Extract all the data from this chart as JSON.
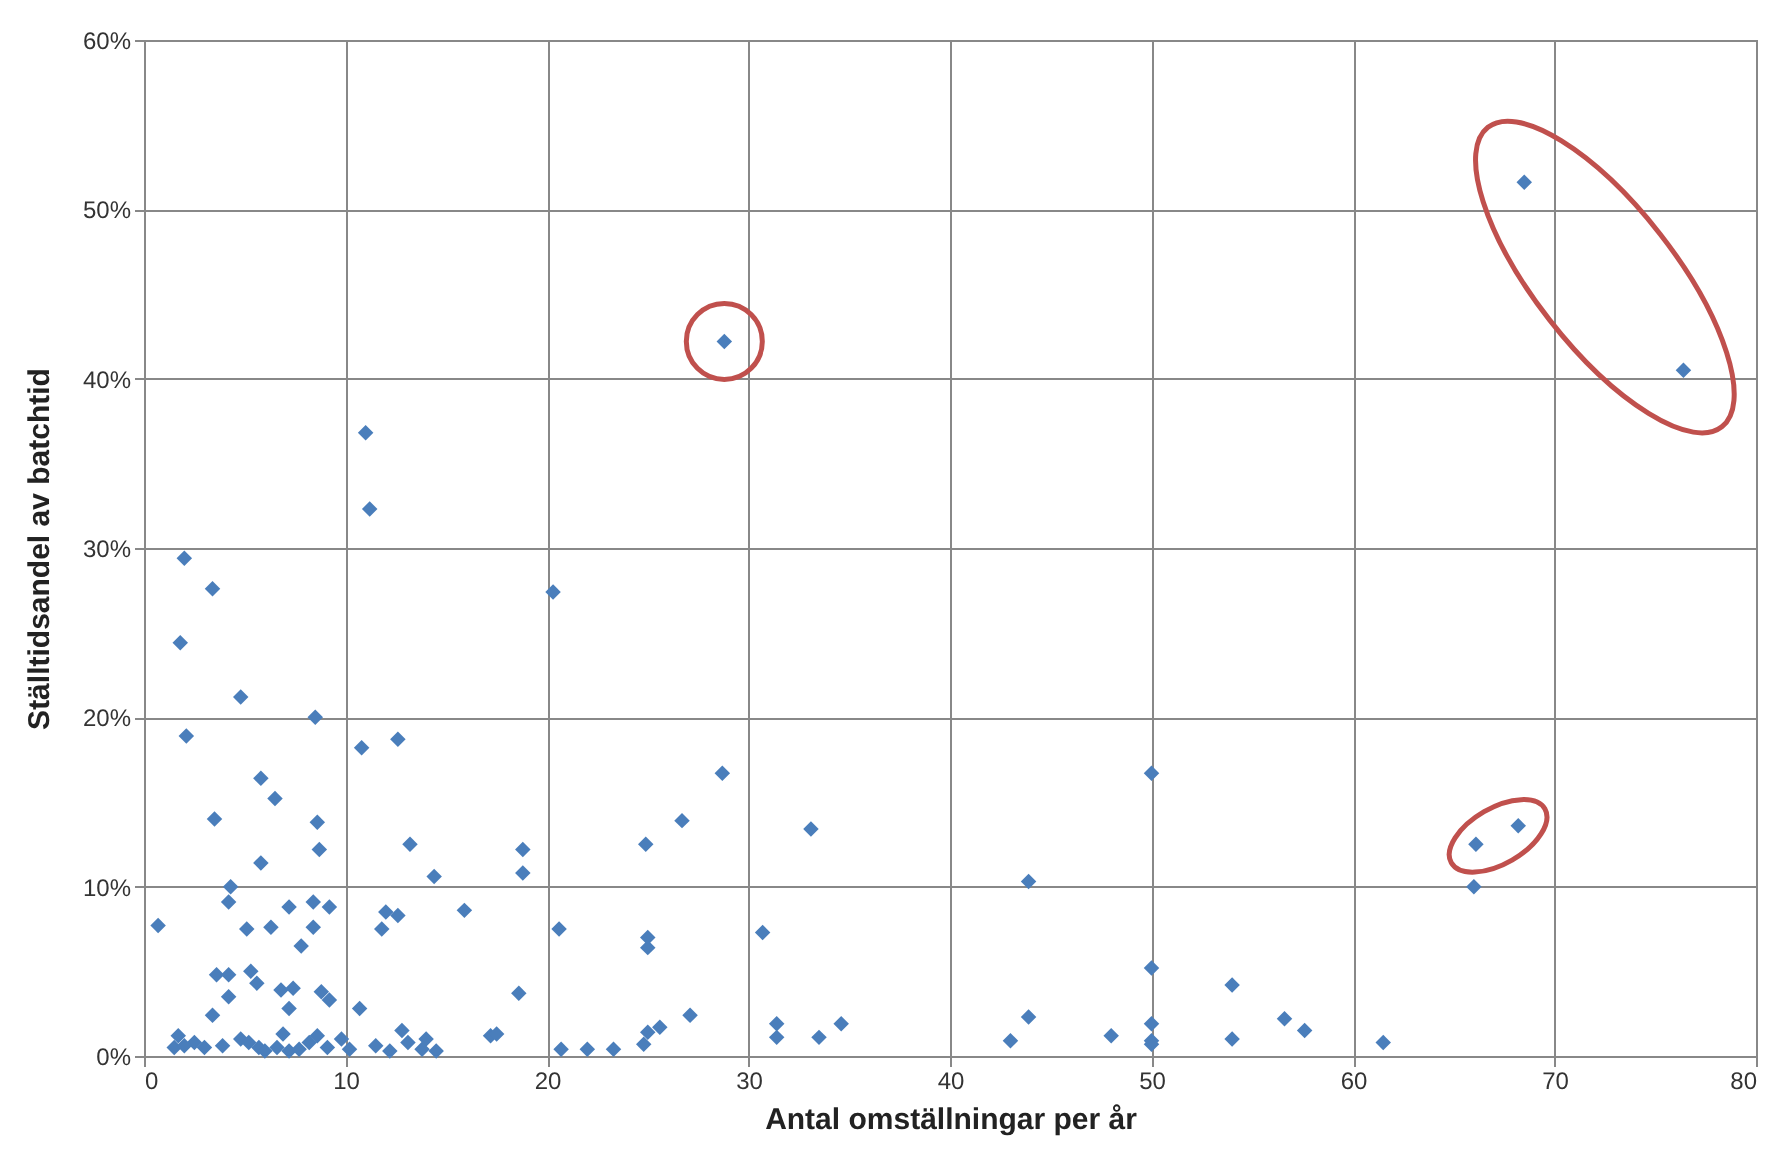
{
  "chart_data": {
    "type": "scatter",
    "xlabel": "Antal omställningar  per år",
    "ylabel": "Ställtidsandel  av batchtid",
    "x": [
      0.7,
      1.7,
      1.8,
      2,
      2.1,
      1.5,
      2.5,
      3.4,
      3.4,
      3.5,
      3.6,
      4.2,
      4.2,
      4.3,
      4.2,
      4.8,
      5.1,
      5.3,
      5.8,
      5.8,
      5.6,
      6.3,
      6.5,
      6.8,
      7.2,
      7.2,
      7.4,
      7.8,
      8.4,
      8.5,
      8.4,
      8.6,
      8.7,
      8.8,
      9.2,
      9.2,
      10.8,
      11,
      11.2,
      10.7,
      11.8,
      12,
      12.6,
      12.6,
      13.2,
      14.4,
      15.9,
      17.2,
      18.6,
      18.8,
      18.8,
      20.3,
      20.6,
      24.9,
      25,
      25,
      26.7,
      28.7,
      28.8,
      30.7,
      33.1,
      43.9,
      50,
      50,
      54,
      66.1,
      68.2,
      66,
      68.5,
      76.4,
      2,
      3,
      3.9,
      4.8,
      5.2,
      5.7,
      6,
      6.6,
      6.9,
      7.2,
      7.7,
      8.2,
      8.6,
      9.1,
      9.8,
      10.2,
      11.5,
      12.2,
      12.8,
      13.1,
      13.8,
      14,
      14.5,
      17.5,
      20.7,
      22,
      23.3,
      24.8,
      25,
      25.6,
      27.1,
      31.4,
      31.4,
      33.5,
      34.6,
      43,
      43.9,
      48,
      50,
      50,
      50,
      54,
      56.6,
      57.6,
      61.5
    ],
    "values": [
      7.7,
      1.2,
      24.4,
      29.4,
      18.9,
      0.5,
      0.8,
      2.4,
      27.6,
      14,
      4.8,
      9.1,
      3.5,
      10,
      4.8,
      21.2,
      7.5,
      5,
      16.4,
      11.4,
      4.3,
      7.6,
      15.2,
      3.9,
      8.8,
      2.8,
      4,
      6.5,
      9.1,
      20,
      7.6,
      13.8,
      12.2,
      3.8,
      8.8,
      3.3,
      18.2,
      36.8,
      32.3,
      2.8,
      7.5,
      8.5,
      18.7,
      8.3,
      12.5,
      10.6,
      8.6,
      1.2,
      3.7,
      12.2,
      10.8,
      27.4,
      7.5,
      12.5,
      7,
      6.4,
      13.9,
      16.7,
      42.2,
      7.3,
      13.4,
      10.3,
      16.7,
      5.2,
      4.2,
      12.5,
      13.6,
      10,
      51.6,
      40.5,
      0.6,
      0.5,
      0.6,
      1,
      0.8,
      0.5,
      0.3,
      0.5,
      1.3,
      0.3,
      0.4,
      0.8,
      1.2,
      0.5,
      1,
      0.4,
      0.6,
      0.3,
      1.5,
      0.8,
      0.4,
      1,
      0.3,
      1.3,
      0.4,
      0.4,
      0.4,
      0.7,
      1.4,
      1.7,
      2.4,
      1.9,
      1.1,
      1.1,
      1.9,
      0.9,
      2.3,
      1.2,
      1.9,
      0.9,
      0.7,
      1,
      2.2,
      1.5,
      0.8
    ],
    "color": "#4a7ebb",
    "marker": "diamond",
    "grid": true,
    "xlim": [
      0,
      80
    ],
    "xticks": [
      0,
      10,
      20,
      30,
      40,
      50,
      60,
      70,
      80
    ],
    "ylim": [
      0,
      60
    ],
    "yticks": [
      {
        "value": 0,
        "label": "0%"
      },
      {
        "value": 10,
        "label": "10%"
      },
      {
        "value": 20,
        "label": "20%"
      },
      {
        "value": 30,
        "label": "30%"
      },
      {
        "value": 40,
        "label": "40%"
      },
      {
        "value": 50,
        "label": "50%"
      },
      {
        "value": 60,
        "label": "60%"
      }
    ]
  }
}
